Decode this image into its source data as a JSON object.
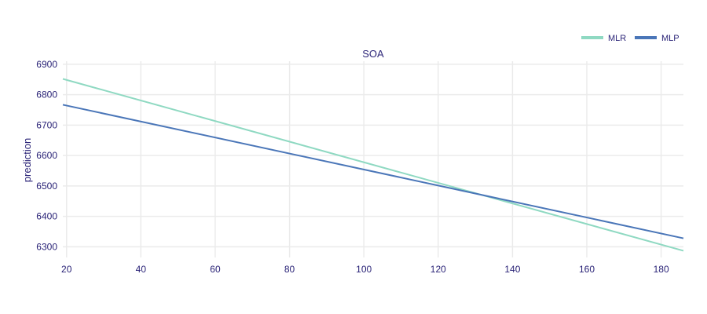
{
  "chart_data": {
    "type": "line",
    "title": "SOA",
    "xlabel": "",
    "ylabel": "prediction",
    "xlim": [
      19,
      186
    ],
    "ylim": [
      6265,
      6910
    ],
    "x_ticks": [
      20,
      40,
      60,
      80,
      100,
      120,
      140,
      160,
      180
    ],
    "y_ticks": [
      6300,
      6400,
      6500,
      6600,
      6700,
      6800,
      6900
    ],
    "grid": true,
    "legend_position": "top-right",
    "x": [
      19,
      186
    ],
    "series": [
      {
        "name": "MLR",
        "color": "#8fd9c2",
        "values": [
          6852,
          6287
        ]
      },
      {
        "name": "MLP",
        "color": "#4a76b8",
        "values": [
          6767,
          6328
        ]
      }
    ]
  }
}
